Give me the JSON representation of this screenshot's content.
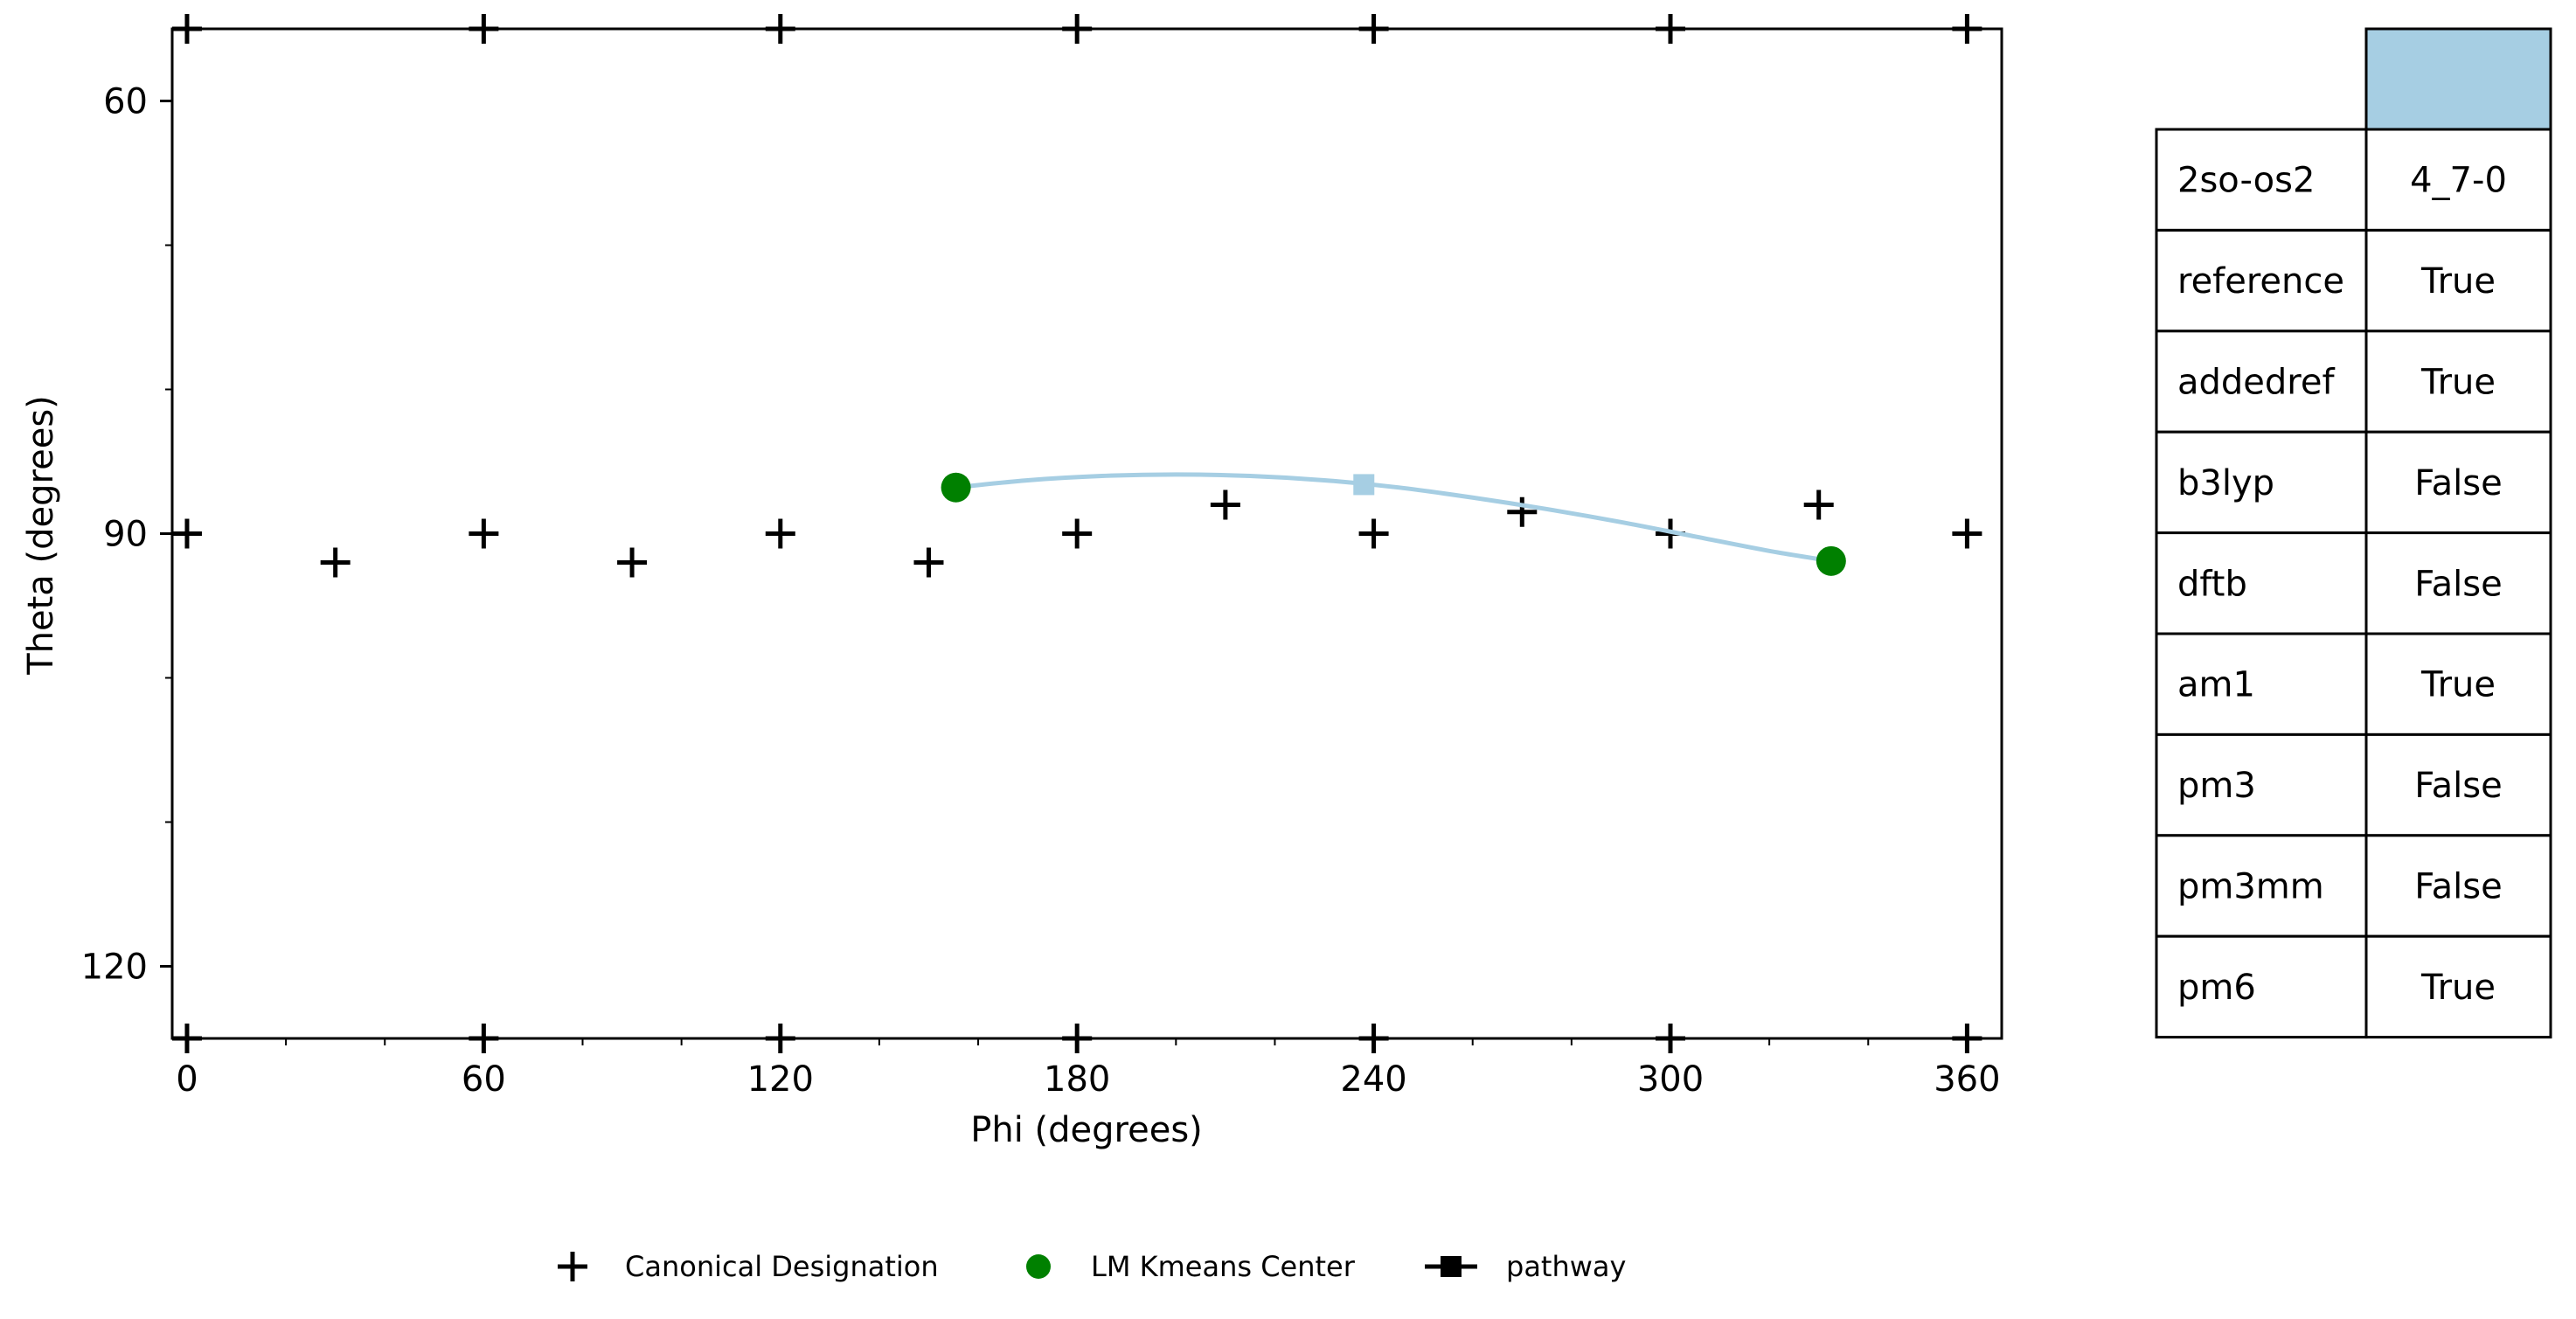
{
  "chart_data": {
    "type": "scatter",
    "xlabel": "Phi (degrees)",
    "ylabel": "Theta (degrees)",
    "xlim": [
      -3,
      367
    ],
    "ylim": [
      55,
      125
    ],
    "y_inverted": true,
    "xticks": [
      0,
      60,
      120,
      180,
      240,
      300,
      360
    ],
    "yticks": [
      60,
      90,
      120
    ],
    "grid": false,
    "legend_position": "bottom",
    "series": [
      {
        "name": "Canonical Designation",
        "marker": "plus",
        "color": "#000000",
        "points": [
          [
            0,
            90
          ],
          [
            30,
            92
          ],
          [
            60,
            90
          ],
          [
            90,
            92
          ],
          [
            120,
            90
          ],
          [
            150,
            92
          ],
          [
            180,
            90
          ],
          [
            210,
            88
          ],
          [
            240,
            90
          ],
          [
            270,
            88.5
          ],
          [
            300,
            90
          ],
          [
            330,
            88
          ],
          [
            360,
            90
          ],
          [
            0,
            125
          ],
          [
            60,
            125
          ],
          [
            120,
            125
          ],
          [
            180,
            125
          ],
          [
            240,
            125
          ],
          [
            300,
            125
          ],
          [
            360,
            125
          ],
          [
            0,
            55
          ],
          [
            60,
            55
          ],
          [
            120,
            55
          ],
          [
            180,
            55
          ],
          [
            240,
            55
          ],
          [
            300,
            55
          ],
          [
            360,
            55
          ]
        ]
      },
      {
        "name": "LM Kmeans Center",
        "marker": "circle",
        "color": "#008000",
        "points": [
          [
            155.5,
            86.8
          ],
          [
            332.5,
            91.9
          ]
        ]
      },
      {
        "name": "pathway",
        "marker": "square",
        "color": "#a6cee3",
        "legend_color": "#000000",
        "midpoint": [
          238,
          86.6
        ],
        "curve": [
          [
            155.5,
            86.8
          ],
          [
            170,
            86.3
          ],
          [
            185,
            86.0
          ],
          [
            200,
            85.9
          ],
          [
            215,
            86.0
          ],
          [
            230,
            86.3
          ],
          [
            245,
            86.8
          ],
          [
            260,
            87.5
          ],
          [
            275,
            88.3
          ],
          [
            290,
            89.2
          ],
          [
            305,
            90.2
          ],
          [
            320,
            91.2
          ],
          [
            332.5,
            91.9
          ]
        ]
      }
    ],
    "table": {
      "header_color": "#a6cee3",
      "rows": [
        {
          "label": "2so-os2",
          "value": "4_7-0"
        },
        {
          "label": "reference",
          "value": "True"
        },
        {
          "label": "addedref",
          "value": "True"
        },
        {
          "label": "b3lyp",
          "value": "False"
        },
        {
          "label": "dftb",
          "value": "False"
        },
        {
          "label": "am1",
          "value": "True"
        },
        {
          "label": "pm3",
          "value": "False"
        },
        {
          "label": "pm3mm",
          "value": "False"
        },
        {
          "label": "pm6",
          "value": "True"
        }
      ]
    }
  }
}
